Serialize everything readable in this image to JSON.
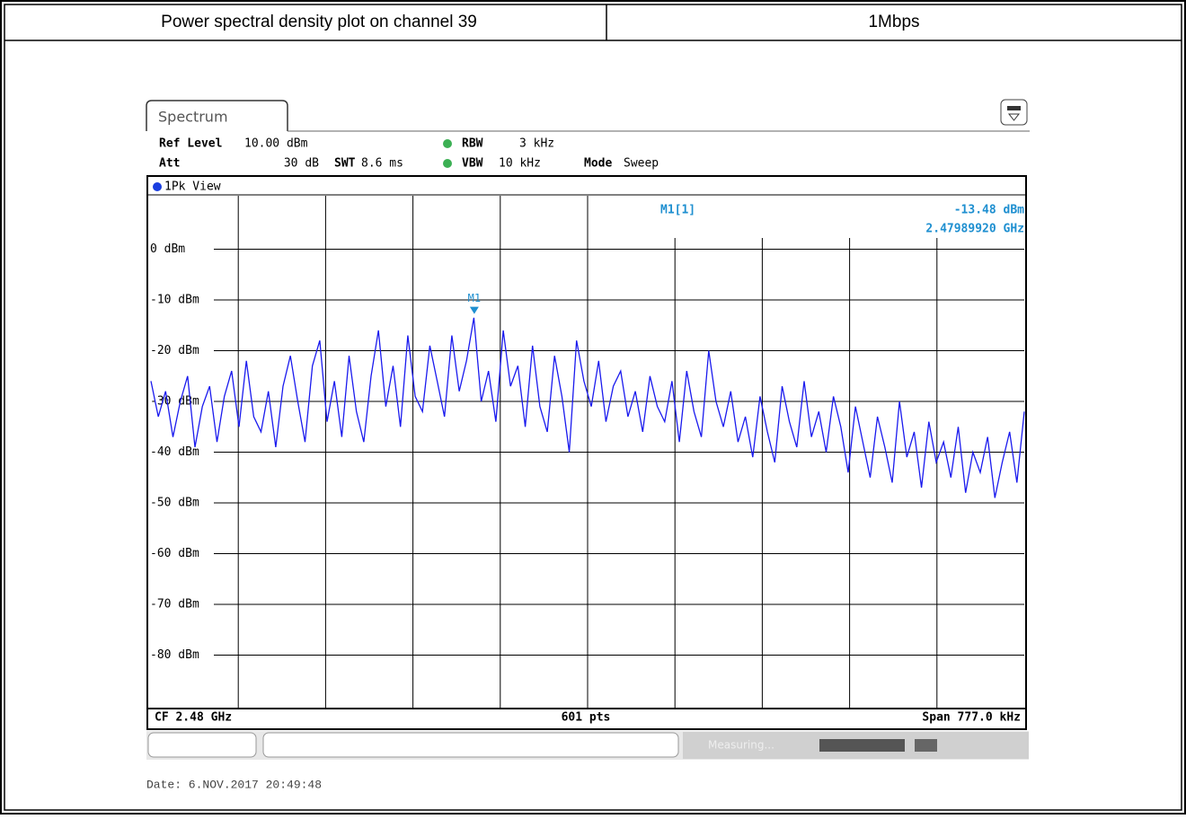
{
  "header": {
    "title": "Power spectral density plot on channel 39",
    "rate": "1Mbps"
  },
  "chart_data": {
    "type": "line",
    "tab": "Spectrum",
    "settings": {
      "ref_level_label": "Ref Level",
      "ref_level": "10.00 dBm",
      "att_label": "Att",
      "att": "30 dB",
      "swt_label": "SWT",
      "swt": "8.6 ms",
      "rbw_label": "RBW",
      "rbw": "3 kHz",
      "vbw_label": "VBW",
      "vbw": "10 kHz",
      "mode_label": "Mode",
      "mode": "Sweep"
    },
    "view": "1Pk View",
    "series": [
      {
        "name": "1Pk",
        "color": "#1a1aee",
        "values": [
          -26,
          -33,
          -28,
          -37,
          -30,
          -25,
          -39,
          -31,
          -27,
          -38,
          -29,
          -24,
          -35,
          -22,
          -33,
          -36,
          -28,
          -39,
          -27,
          -21,
          -30,
          -38,
          -23,
          -18,
          -34,
          -26,
          -37,
          -21,
          -32,
          -38,
          -25,
          -16,
          -31,
          -23,
          -35,
          -17,
          -29,
          -32,
          -19,
          -26,
          -33,
          -17,
          -28,
          -22,
          -13.5,
          -30,
          -24,
          -34,
          -16,
          -27,
          -23,
          -35,
          -19,
          -31,
          -36,
          -21,
          -29,
          -40,
          -18,
          -26,
          -31,
          -22,
          -34,
          -27,
          -24,
          -33,
          -28,
          -36,
          -25,
          -31,
          -34,
          -26,
          -38,
          -24,
          -32,
          -37,
          -20,
          -30,
          -35,
          -28,
          -38,
          -33,
          -41,
          -29,
          -36,
          -42,
          -27,
          -34,
          -39,
          -26,
          -37,
          -32,
          -40,
          -29,
          -35,
          -44,
          -31,
          -38,
          -45,
          -33,
          -39,
          -46,
          -30,
          -41,
          -36,
          -47,
          -34,
          -42,
          -38,
          -45,
          -35,
          -48,
          -40,
          -44,
          -37,
          -49,
          -42,
          -36,
          -46,
          -32
        ]
      }
    ],
    "xlim": [
      2.4796115,
      2.4803885
    ],
    "ylim": [
      -90,
      10
    ],
    "yticks": [
      {
        "value": 0,
        "label": "0 dBm"
      },
      {
        "value": -10,
        "label": "-10 dBm"
      },
      {
        "value": -20,
        "label": "-20 dBm"
      },
      {
        "value": -30,
        "label": "-30 dBm"
      },
      {
        "value": -40,
        "label": "-40 dBm"
      },
      {
        "value": -50,
        "label": "-50 dBm"
      },
      {
        "value": -60,
        "label": "-60 dBm"
      },
      {
        "value": -70,
        "label": "-70 dBm"
      },
      {
        "value": -80,
        "label": "-80 dBm"
      }
    ],
    "marker": {
      "label": "M1",
      "name": "M1[1]",
      "value": -13.48,
      "value_label": "-13.48 dBm",
      "freq": 2.4798992,
      "freq_label": "2.47989920 GHz",
      "color": "#1e8fd0"
    },
    "footer": {
      "cf": "CF 2.48 GHz",
      "points": "601 pts",
      "span": "Span 777.0 kHz"
    },
    "status": "Measuring...",
    "date": "Date: 6.NOV.2017  20:49:48"
  }
}
